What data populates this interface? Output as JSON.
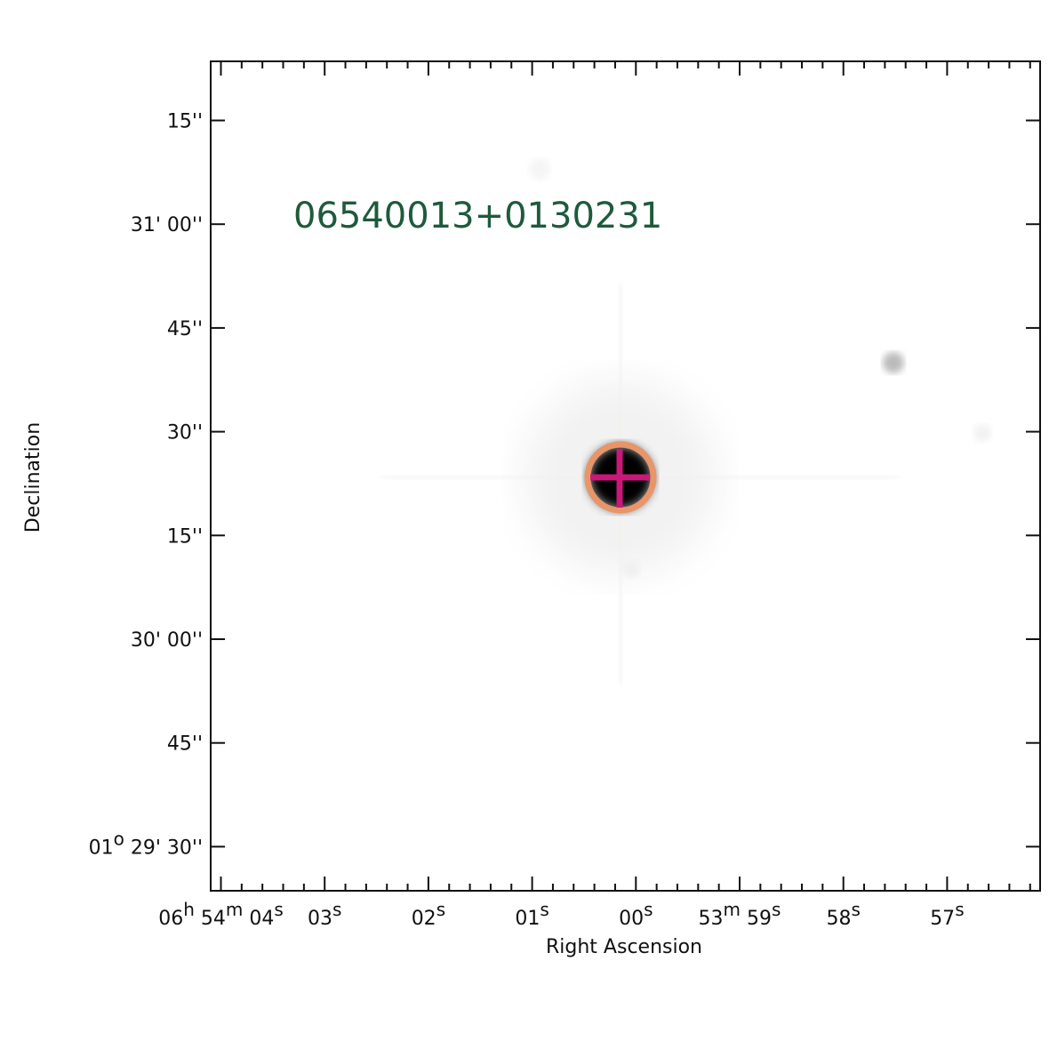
{
  "object_name": "06540013+0130231",
  "x_axis": {
    "label": "Right Ascension",
    "ticks": [
      "06h 54m 04s",
      "03s",
      "02s",
      "01s",
      "00s",
      "53m 59s",
      "58s",
      "57s"
    ]
  },
  "y_axis": {
    "label": "Declination",
    "ticks": [
      "15''",
      "31' 00''",
      "45''",
      "30''",
      "15''",
      "30' 00''",
      "45''",
      "01o 29' 30''"
    ]
  }
}
